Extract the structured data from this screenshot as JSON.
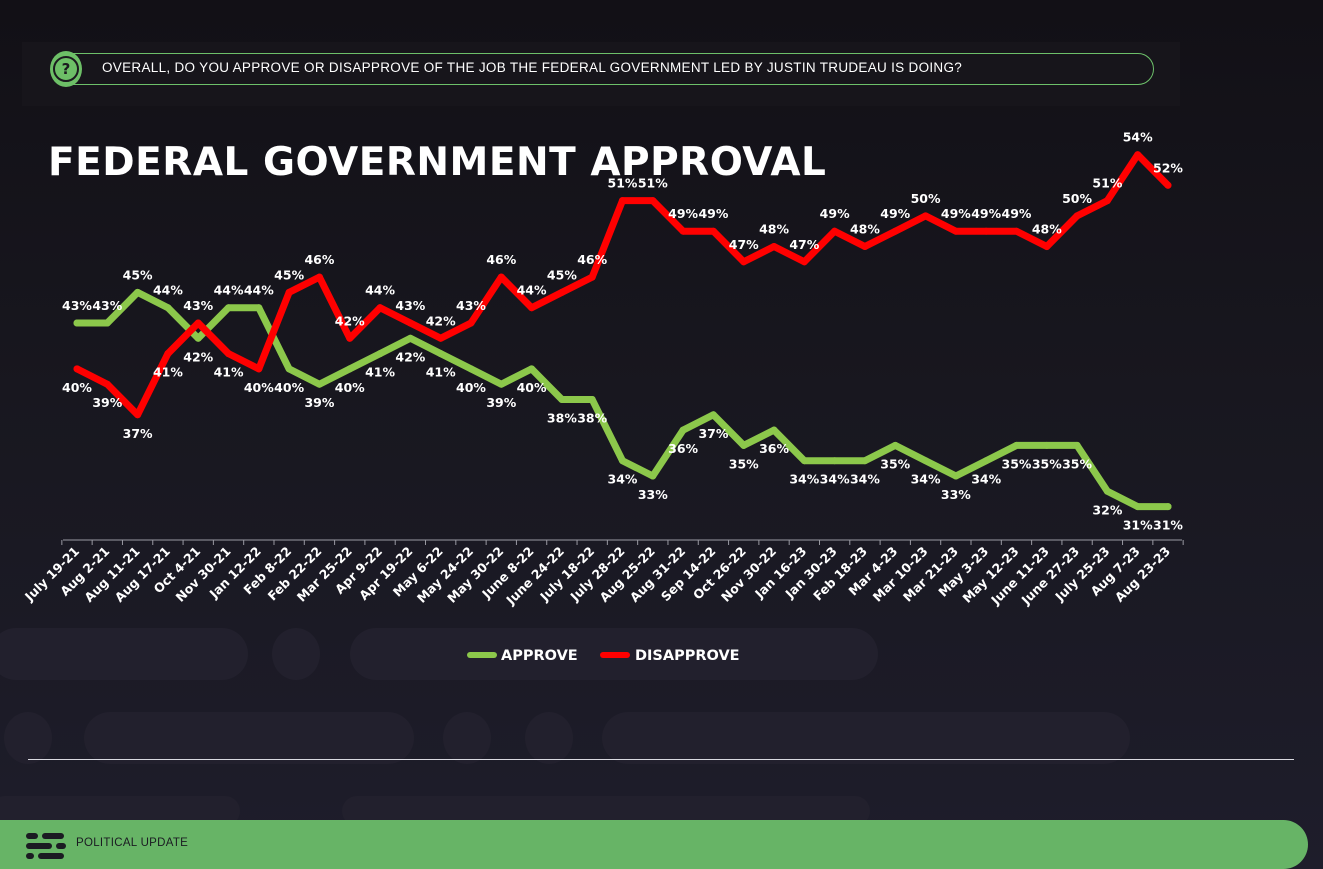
{
  "question": "OVERALL, DO YOU APPROVE OR DISAPPROVE OF THE JOB THE FEDERAL GOVERNMENT LED BY JUSTIN TRUDEAU IS DOING?",
  "question_icon": "question-mark-icon",
  "footer": {
    "label": "POLITICAL UPDATE",
    "logo_icon": "abacus-logo-icon"
  },
  "colors": {
    "approve": "#8cc84b",
    "disapprove": "#ff0000",
    "footer": "#67b466",
    "question_accent": "#6dc06a"
  },
  "chart_data": {
    "type": "line",
    "title": "FEDERAL GOVERNMENT APPROVAL",
    "xlabel": "",
    "ylabel": "",
    "ylim": [
      0,
      100
    ],
    "grid": false,
    "legend_position": "bottom-center",
    "categories": [
      "July 19-21",
      "Aug 2-21",
      "Aug 11-21",
      "Aug 17-21",
      "Oct 4-21",
      "Nov 30-21",
      "Jan 12-22",
      "Feb 8-22",
      "Feb 22-22",
      "Mar 25-22",
      "Apr 9-22",
      "Apr 19-22",
      "May 6-22",
      "May 24-22",
      "May 30-22",
      "June 8-22",
      "June 24-22",
      "July 18-22",
      "July 28-22",
      "Aug 25-22",
      "Aug 31-22",
      "Sep 14-22",
      "Oct 26-22",
      "Nov 30-22",
      "Jan 16-23",
      "Jan 30-23",
      "Feb 18-23",
      "Mar 4-23",
      "Mar 10-23",
      "Mar 21-23",
      "May 3-23",
      "May 12-23",
      "June 11-23",
      "June 27-23",
      "July 25-23",
      "Aug 7-23",
      "Aug 23-23"
    ],
    "series": [
      {
        "name": "APPROVE",
        "color": "#8cc84b",
        "values": [
          43,
          43,
          45,
          44,
          42,
          44,
          44,
          40,
          39,
          40,
          41,
          42,
          41,
          40,
          39,
          40,
          38,
          38,
          34,
          33,
          36,
          37,
          35,
          36,
          34,
          34,
          34,
          35,
          34,
          33,
          34,
          35,
          35,
          35,
          32,
          31,
          31
        ]
      },
      {
        "name": "DISAPPROVE",
        "color": "#ff0000",
        "values": [
          40,
          39,
          37,
          41,
          43,
          41,
          40,
          45,
          46,
          42,
          44,
          43,
          42,
          43,
          46,
          44,
          45,
          46,
          51,
          51,
          49,
          49,
          47,
          48,
          47,
          49,
          48,
          49,
          50,
          49,
          49,
          49,
          48,
          50,
          51,
          54,
          52
        ]
      }
    ]
  }
}
